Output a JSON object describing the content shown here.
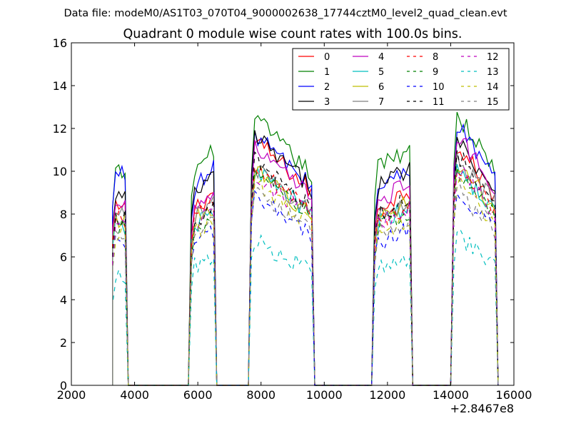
{
  "chart_data": {
    "type": "line",
    "suptitle": "Data file: modeM0/AS1T03_070T04_9000002638_17744cztM0_level2_quad_clean.evt",
    "title": "Quadrant 0 module wise count rates with 100.0s bins.",
    "xlabel": "",
    "ylabel": "",
    "x_offset_label": "+2.8467e8",
    "xlim": [
      2000,
      16000
    ],
    "ylim": [
      0,
      16
    ],
    "xticks": [
      2000,
      4000,
      6000,
      8000,
      10000,
      12000,
      14000,
      16000
    ],
    "yticks": [
      0,
      2,
      4,
      6,
      8,
      10,
      12,
      14,
      16
    ],
    "grid": false,
    "legend_position": "top-right",
    "segments": [
      {
        "start": 3300,
        "end": 3700
      },
      {
        "start": 5800,
        "end": 6500
      },
      {
        "start": 7700,
        "end": 9600
      },
      {
        "start": 11600,
        "end": 12700
      },
      {
        "start": 14100,
        "end": 15400
      }
    ],
    "series": [
      {
        "name": "0",
        "color": "#ff0000",
        "dash": "solid",
        "levels": [
          8.2,
          8.6,
          11.6,
          8.7,
          11.4
        ]
      },
      {
        "name": "1",
        "color": "#008000",
        "dash": "solid",
        "levels": [
          9.9,
          10.4,
          12.6,
          10.6,
          12.9
        ]
      },
      {
        "name": "2",
        "color": "#0000ff",
        "dash": "solid",
        "levels": [
          9.9,
          9.6,
          11.9,
          9.6,
          12.4
        ]
      },
      {
        "name": "3",
        "color": "#000000",
        "dash": "solid",
        "levels": [
          8.8,
          9.3,
          11.8,
          9.7,
          11.7
        ]
      },
      {
        "name": "4",
        "color": "#bf00bf",
        "dash": "solid",
        "levels": [
          8.7,
          8.6,
          11.2,
          9.0,
          11.9
        ]
      },
      {
        "name": "5",
        "color": "#00bfbf",
        "dash": "solid",
        "levels": [
          7.4,
          7.7,
          10.2,
          7.9,
          10.4
        ]
      },
      {
        "name": "6",
        "color": "#bfbf00",
        "dash": "solid",
        "levels": [
          7.8,
          8.0,
          10.1,
          8.2,
          10.6
        ]
      },
      {
        "name": "7",
        "color": "#808080",
        "dash": "solid",
        "levels": [
          8.0,
          8.2,
          10.3,
          8.2,
          10.9
        ]
      },
      {
        "name": "8",
        "color": "#ff0000",
        "dash": "dashed",
        "levels": [
          7.8,
          8.0,
          10.3,
          8.0,
          10.5
        ]
      },
      {
        "name": "9",
        "color": "#008000",
        "dash": "dashed",
        "levels": [
          7.3,
          7.5,
          10.0,
          7.6,
          10.2
        ]
      },
      {
        "name": "10",
        "color": "#0000ff",
        "dash": "dashed",
        "levels": [
          6.6,
          6.9,
          8.9,
          6.9,
          9.4
        ]
      },
      {
        "name": "11",
        "color": "#000000",
        "dash": "dashed",
        "levels": [
          7.8,
          8.0,
          10.6,
          8.3,
          11.0
        ]
      },
      {
        "name": "12",
        "color": "#bf00bf",
        "dash": "dashed",
        "levels": [
          7.5,
          7.8,
          10.0,
          7.8,
          10.4
        ]
      },
      {
        "name": "13",
        "color": "#00bfbf",
        "dash": "dashed",
        "levels": [
          5.0,
          5.8,
          6.8,
          5.6,
          7.1
        ]
      },
      {
        "name": "14",
        "color": "#bfbf00",
        "dash": "dashed",
        "levels": [
          7.0,
          7.4,
          9.6,
          7.4,
          9.7
        ]
      },
      {
        "name": "15",
        "color": "#808080",
        "dash": "dashed",
        "levels": [
          6.8,
          7.2,
          9.2,
          7.3,
          9.3
        ]
      }
    ]
  }
}
